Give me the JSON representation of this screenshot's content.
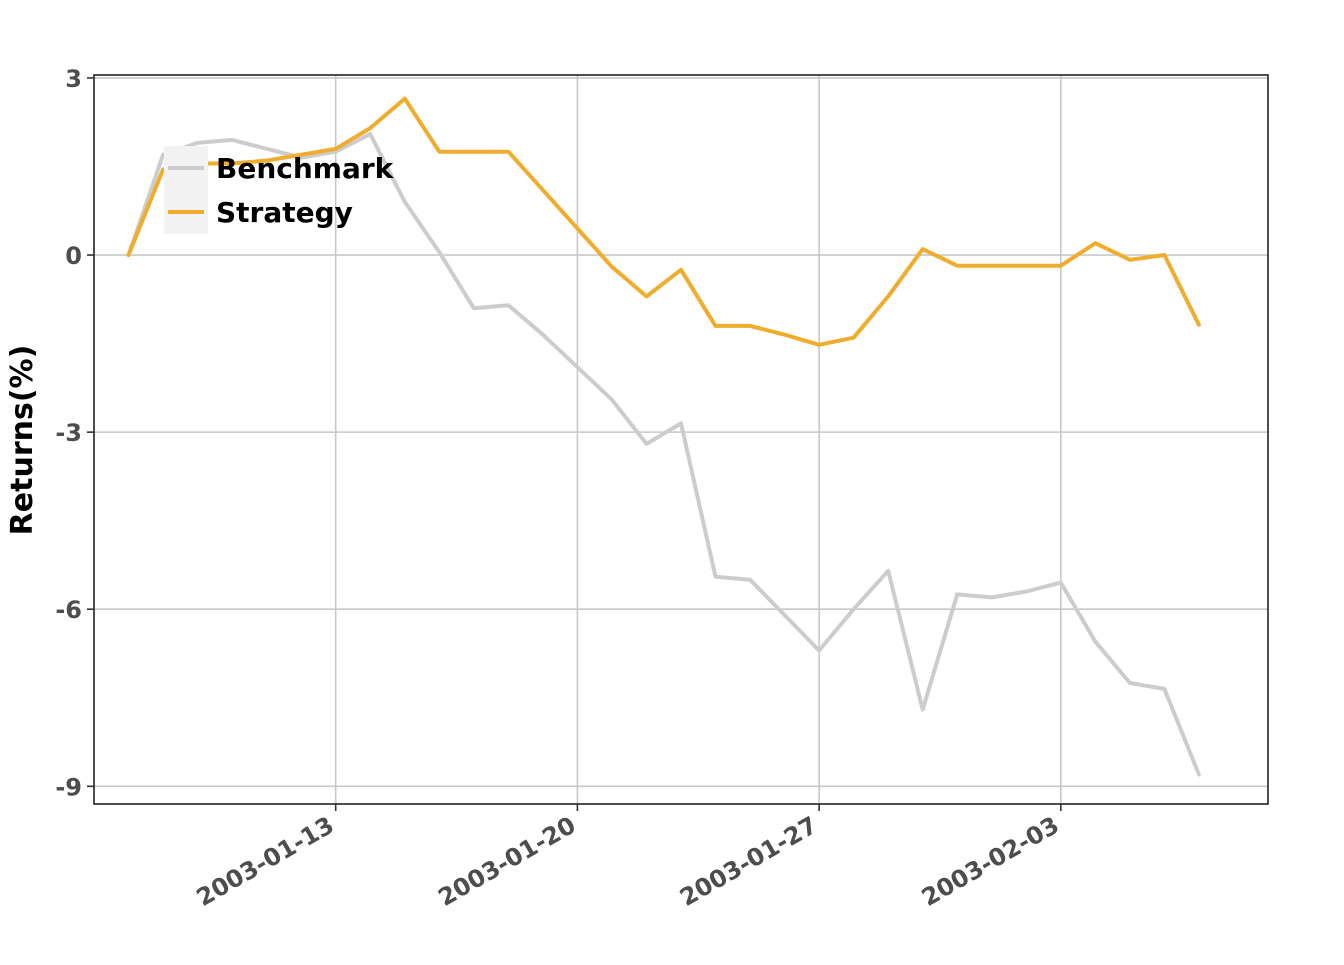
{
  "chart_data": {
    "type": "line",
    "title": "",
    "xlabel": "",
    "ylabel": "Returns(%)",
    "ylim": [
      -9.3,
      3.05
    ],
    "xlim": [
      "2003-01-06",
      "2003-02-09"
    ],
    "grid": true,
    "legend_position": "top-left",
    "y_ticks": [
      3,
      0,
      -3,
      -6,
      -9
    ],
    "y_tick_labels": [
      "3",
      "0",
      "-3",
      "-6",
      "-9"
    ],
    "x_ticks": [
      "2003-01-13",
      "2003-01-20",
      "2003-01-27",
      "2003-02-03"
    ],
    "x_tick_labels": [
      "2003-01-13",
      "2003-01-20",
      "2003-01-27",
      "2003-02-03"
    ],
    "x": [
      "2003-01-07",
      "2003-01-08",
      "2003-01-09",
      "2003-01-10",
      "2003-01-11",
      "2003-01-12",
      "2003-01-13",
      "2003-01-14",
      "2003-01-15",
      "2003-01-16",
      "2003-01-17",
      "2003-01-18",
      "2003-01-19",
      "2003-01-20",
      "2003-01-21",
      "2003-01-22",
      "2003-01-23",
      "2003-01-24",
      "2003-01-25",
      "2003-01-26",
      "2003-01-27",
      "2003-01-28",
      "2003-01-29",
      "2003-01-30",
      "2003-01-31",
      "2003-02-01",
      "2003-02-02",
      "2003-02-03",
      "2003-02-04",
      "2003-02-05",
      "2003-02-06",
      "2003-02-07"
    ],
    "series": [
      {
        "name": "Benchmark",
        "color": "#cccccc",
        "values": [
          0,
          1.7,
          1.9,
          1.95,
          1.8,
          1.65,
          1.75,
          2.05,
          0.9,
          0.05,
          -0.9,
          -0.85,
          -1.35,
          -1.9,
          -2.45,
          -3.2,
          -2.85,
          -5.45,
          -5.5,
          -6.1,
          -6.7,
          -6.0,
          -5.35,
          -7.7,
          -5.75,
          -5.8,
          -5.7,
          -5.55,
          -6.55,
          -7.25,
          -7.35,
          -8.8
        ]
      },
      {
        "name": "Strategy",
        "color": "#f0ac2d",
        "values": [
          0,
          1.45,
          1.55,
          1.55,
          1.6,
          1.7,
          1.8,
          2.15,
          2.65,
          1.75,
          1.75,
          1.75,
          1.1,
          0.45,
          -0.2,
          -0.7,
          -0.25,
          -1.2,
          -1.2,
          -1.35,
          -1.52,
          -1.4,
          -0.7,
          0.1,
          -0.18,
          -0.18,
          -0.18,
          -0.18,
          0.2,
          -0.08,
          0.0,
          -1.18
        ]
      }
    ]
  }
}
